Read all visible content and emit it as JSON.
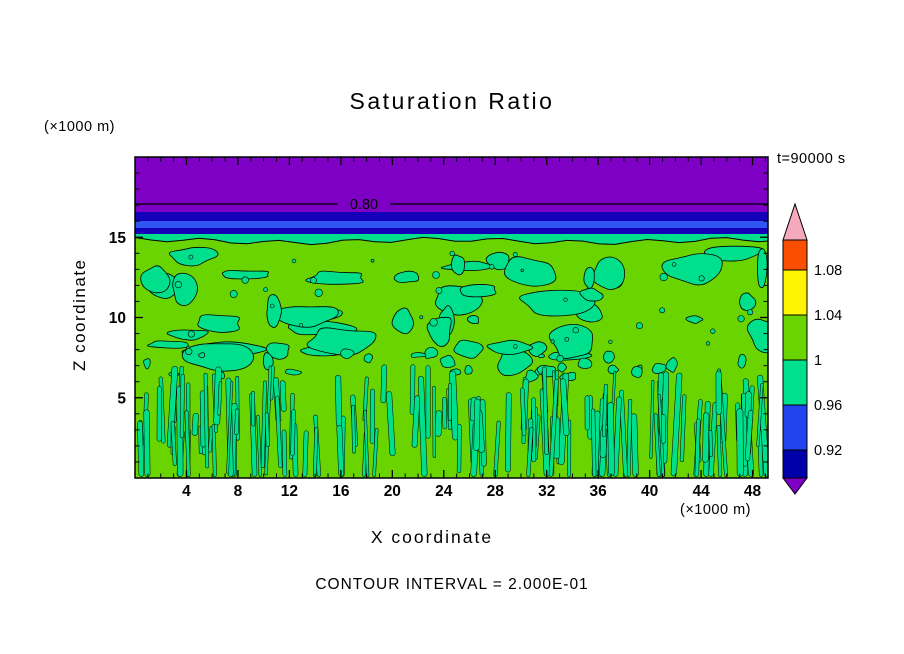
{
  "chart_data": {
    "type": "heatmap",
    "title": "Saturation Ratio",
    "xlabel": "X coordinate",
    "ylabel": "Z coordinate",
    "x_units": "(×1000 m)",
    "y_units": "(×1000 m)",
    "timestamp": "t=90000 s",
    "contour_interval_label": "CONTOUR INTERVAL = 2.000E-01",
    "contour_line_label": "0.80",
    "x_ticks": [
      4,
      8,
      12,
      16,
      20,
      24,
      28,
      32,
      36,
      40,
      44,
      48
    ],
    "y_ticks": [
      5,
      10,
      15
    ],
    "xlim": [
      0,
      49.2
    ],
    "ylim": [
      0,
      20
    ],
    "colorbar": {
      "labels": [
        "1.08",
        "1.04",
        "1",
        "0.96",
        "0.92"
      ],
      "segment_colors_top_to_bottom": [
        "#FA4F00",
        "#FFF500",
        "#6AD400",
        "#00DF8B",
        "#2144EE",
        "#0000A8"
      ],
      "arrow_top_color": "#F5A9BC",
      "arrow_bottom_color": "#7D00C4"
    },
    "field_colors": {
      "background_green": "#6AD400",
      "patch_turquoise": "#00DF8B",
      "top_band_purple": "#7D00C4",
      "band_dark_blue": "#1400B8",
      "band_blue_stripe": "#2F56F0"
    },
    "regions": [
      {
        "area": "z above ~16.5 (x1000 m)",
        "value": "saturation ratio below 0.88",
        "color": "purple band containing the 0.80 contour line"
      },
      {
        "area": "z ~15.2-16.5",
        "value": "0.88-0.96",
        "color": "dark blue band with brighter blue stripe"
      },
      {
        "area": "z ~6.8-15.2",
        "value": "~1.0-1.04 background with 0.96-1.0 patches",
        "color": "yellow-green field with irregular turquoise blobs"
      },
      {
        "area": "z below ~6.8",
        "value": "alternating 0.96-1.04 filaments",
        "color": "dense thin vertical turquoise streaks on yellow-green"
      }
    ]
  }
}
